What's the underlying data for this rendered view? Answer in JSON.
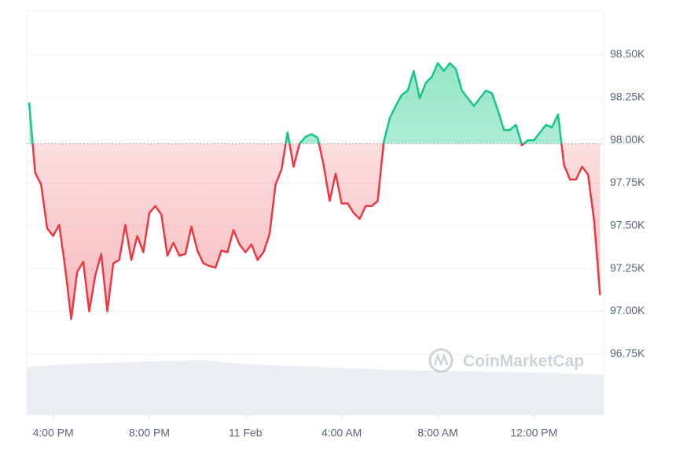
{
  "chart_data": {
    "type": "line",
    "watermark": "CoinMarketCap",
    "xlim": [
      14.9,
      38.9
    ],
    "xticks": [
      {
        "value": 16,
        "label": "4:00 PM"
      },
      {
        "value": 20,
        "label": "8:00 PM"
      },
      {
        "value": 24,
        "label": "11 Feb"
      },
      {
        "value": 28,
        "label": "4:00 AM"
      },
      {
        "value": 32,
        "label": "8:00 AM"
      },
      {
        "value": 36,
        "label": "12:00 PM"
      }
    ],
    "ylim": [
      96395,
      98755
    ],
    "yticks": [
      {
        "value": 96750,
        "label": "96.75K"
      },
      {
        "value": 97000,
        "label": "97.00K"
      },
      {
        "value": 97250,
        "label": "97.25K"
      },
      {
        "value": 97500,
        "label": "97.50K"
      },
      {
        "value": 97750,
        "label": "97.75K"
      },
      {
        "value": 98000,
        "label": "98.00K"
      },
      {
        "value": 98250,
        "label": "98.25K"
      },
      {
        "value": 98500,
        "label": "98.50K"
      }
    ],
    "grid": true,
    "reference_line": 97980,
    "up_color": "#16c784",
    "down_color": "#ea3943",
    "x": [
      15,
      15.25,
      15.5,
      15.75,
      16,
      16.25,
      16.5,
      16.75,
      17,
      17.25,
      17.5,
      17.75,
      18,
      18.25,
      18.5,
      18.75,
      19,
      19.25,
      19.5,
      19.75,
      20,
      20.25,
      20.5,
      20.75,
      21,
      21.25,
      21.5,
      21.75,
      22,
      22.25,
      22.5,
      22.75,
      23,
      23.25,
      23.5,
      23.75,
      24,
      24.25,
      24.5,
      24.75,
      25,
      25.25,
      25.5,
      25.75,
      26,
      26.25,
      26.5,
      26.75,
      27,
      27.25,
      27.5,
      27.75,
      28,
      28.25,
      28.5,
      28.75,
      29,
      29.25,
      29.5,
      29.75,
      30,
      30.25,
      30.5,
      30.75,
      31,
      31.25,
      31.5,
      31.75,
      32,
      32.25,
      32.5,
      32.75,
      33,
      33.25,
      33.5,
      33.75,
      34,
      34.25,
      34.5,
      34.75,
      35,
      35.25,
      35.5,
      35.75,
      36,
      36.25,
      36.5,
      36.75,
      37,
      37.25,
      37.5,
      37.75,
      38,
      38.25,
      38.5,
      38.75
    ],
    "values": [
      98220,
      97810,
      97740,
      97485,
      97440,
      97505,
      97255,
      96955,
      97230,
      97290,
      97000,
      97210,
      97335,
      97000,
      97280,
      97300,
      97505,
      97300,
      97440,
      97345,
      97575,
      97615,
      97565,
      97325,
      97400,
      97325,
      97335,
      97495,
      97355,
      97280,
      97265,
      97255,
      97355,
      97345,
      97475,
      97390,
      97345,
      97390,
      97300,
      97345,
      97450,
      97740,
      97830,
      98045,
      97845,
      97980,
      98020,
      98035,
      98015,
      97855,
      97645,
      97805,
      97630,
      97630,
      97575,
      97540,
      97615,
      97615,
      97645,
      97990,
      98130,
      98200,
      98265,
      98290,
      98405,
      98245,
      98335,
      98370,
      98450,
      98405,
      98450,
      98415,
      98290,
      98245,
      98200,
      98245,
      98290,
      98275,
      98175,
      98060,
      98060,
      98090,
      97970,
      98000,
      98000,
      98045,
      98090,
      98075,
      98150,
      97855,
      97770,
      97770,
      97845,
      97800,
      97530,
      97095
    ]
  }
}
